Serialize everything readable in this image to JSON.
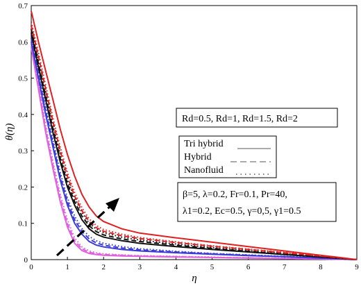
{
  "chart_data": {
    "type": "line",
    "xlabel": "η",
    "ylabel": "θ(η)",
    "xlim": [
      0,
      9
    ],
    "ylim": [
      0,
      0.7
    ],
    "xticks": [
      "0",
      "1",
      "2",
      "3",
      "4",
      "5",
      "6",
      "7",
      "8",
      "9"
    ],
    "yticks": [
      "0",
      "0.1",
      "0.2",
      "0.3",
      "0.4",
      "0.5",
      "0.6",
      "0.7"
    ],
    "grid": false,
    "colors": {
      "Rd=0.5": "#e060e0",
      "Rd=1": "#3a3ad8",
      "Rd=1.5": "#111111",
      "Rd=2": "#e02020"
    },
    "annotations": {
      "rd_box": "Rd=0.5, Rd=1, Rd=1.5, Rd=2",
      "legend_tri": "Tri hybrid",
      "legend_hybrid": "Hybrid",
      "legend_nano": "Nanofluid",
      "params_line1": "β=5,   λ=0.2,   Fr=0.1,   Pr=40,",
      "params_line2": "λ1=0.2, Ec=0.5, γ=0,5, γ1=0.5"
    },
    "series": [
      {
        "rd": "Rd=0.5",
        "style": "solid",
        "x": [
          0,
          0.2,
          0.4,
          0.6,
          0.8,
          1.0,
          1.2,
          1.4,
          1.6,
          1.8,
          2.0,
          2.5,
          3,
          4,
          5,
          6,
          7,
          8,
          8.6,
          9
        ],
        "y": [
          0.585,
          0.47,
          0.35,
          0.25,
          0.16,
          0.09,
          0.045,
          0.025,
          0.017,
          0.014,
          0.012,
          0.01,
          0.009,
          0.007,
          0.006,
          0.004,
          0.003,
          0.002,
          0.001,
          0
        ]
      },
      {
        "rd": "Rd=0.5",
        "style": "dashed",
        "x": [
          0,
          0.2,
          0.4,
          0.6,
          0.8,
          1.0,
          1.2,
          1.4,
          1.6,
          1.8,
          2.0,
          2.5,
          3,
          4,
          5,
          6,
          7,
          8,
          8.6,
          9
        ],
        "y": [
          0.595,
          0.48,
          0.36,
          0.26,
          0.17,
          0.1,
          0.052,
          0.03,
          0.02,
          0.016,
          0.014,
          0.012,
          0.01,
          0.008,
          0.006,
          0.005,
          0.003,
          0.002,
          0.001,
          0
        ]
      },
      {
        "rd": "Rd=0.5",
        "style": "dotted",
        "x": [
          0,
          0.2,
          0.4,
          0.6,
          0.8,
          1.0,
          1.2,
          1.4,
          1.6,
          1.8,
          2.0,
          2.5,
          3,
          4,
          5,
          6,
          7,
          8,
          8.6,
          9
        ],
        "y": [
          0.605,
          0.49,
          0.37,
          0.27,
          0.18,
          0.11,
          0.06,
          0.035,
          0.024,
          0.019,
          0.016,
          0.013,
          0.011,
          0.009,
          0.007,
          0.005,
          0.004,
          0.002,
          0.001,
          0
        ]
      },
      {
        "rd": "Rd=1",
        "style": "solid",
        "x": [
          0,
          0.2,
          0.4,
          0.6,
          0.8,
          1.0,
          1.2,
          1.4,
          1.6,
          1.8,
          2.0,
          2.5,
          3,
          4,
          5,
          6,
          7,
          8,
          8.6,
          9
        ],
        "y": [
          0.6,
          0.5,
          0.4,
          0.31,
          0.22,
          0.15,
          0.1,
          0.07,
          0.05,
          0.04,
          0.035,
          0.028,
          0.024,
          0.019,
          0.015,
          0.011,
          0.008,
          0.004,
          0.002,
          0
        ]
      },
      {
        "rd": "Rd=1",
        "style": "dashed",
        "x": [
          0,
          0.2,
          0.4,
          0.6,
          0.8,
          1.0,
          1.2,
          1.4,
          1.6,
          1.8,
          2.0,
          2.5,
          3,
          4,
          5,
          6,
          7,
          8,
          8.6,
          9
        ],
        "y": [
          0.61,
          0.51,
          0.41,
          0.32,
          0.23,
          0.16,
          0.11,
          0.078,
          0.057,
          0.046,
          0.04,
          0.032,
          0.027,
          0.021,
          0.016,
          0.012,
          0.008,
          0.004,
          0.002,
          0
        ]
      },
      {
        "rd": "Rd=1",
        "style": "dotted",
        "x": [
          0,
          0.2,
          0.4,
          0.6,
          0.8,
          1.0,
          1.2,
          1.4,
          1.6,
          1.8,
          2.0,
          2.5,
          3,
          4,
          5,
          6,
          7,
          8,
          8.6,
          9
        ],
        "y": [
          0.62,
          0.52,
          0.42,
          0.33,
          0.24,
          0.17,
          0.12,
          0.086,
          0.064,
          0.052,
          0.045,
          0.036,
          0.03,
          0.023,
          0.017,
          0.013,
          0.009,
          0.005,
          0.002,
          0
        ]
      },
      {
        "rd": "Rd=1.5",
        "style": "solid",
        "x": [
          0,
          0.2,
          0.4,
          0.6,
          0.8,
          1.0,
          1.2,
          1.4,
          1.6,
          1.8,
          2.0,
          2.5,
          3,
          4,
          5,
          6,
          7,
          8,
          8.6,
          9
        ],
        "y": [
          0.625,
          0.53,
          0.44,
          0.35,
          0.27,
          0.2,
          0.15,
          0.11,
          0.085,
          0.07,
          0.062,
          0.052,
          0.045,
          0.036,
          0.028,
          0.021,
          0.014,
          0.007,
          0.003,
          0
        ]
      },
      {
        "rd": "Rd=1.5",
        "style": "dashed",
        "x": [
          0,
          0.2,
          0.4,
          0.6,
          0.8,
          1.0,
          1.2,
          1.4,
          1.6,
          1.8,
          2.0,
          2.5,
          3,
          4,
          5,
          6,
          7,
          8,
          8.6,
          9
        ],
        "y": [
          0.635,
          0.54,
          0.45,
          0.36,
          0.28,
          0.21,
          0.16,
          0.12,
          0.093,
          0.077,
          0.068,
          0.057,
          0.05,
          0.04,
          0.031,
          0.023,
          0.015,
          0.008,
          0.003,
          0
        ]
      },
      {
        "rd": "Rd=1.5",
        "style": "dotted",
        "x": [
          0,
          0.2,
          0.4,
          0.6,
          0.8,
          1.0,
          1.2,
          1.4,
          1.6,
          1.8,
          2.0,
          2.5,
          3,
          4,
          5,
          6,
          7,
          8,
          8.6,
          9
        ],
        "y": [
          0.645,
          0.55,
          0.46,
          0.37,
          0.29,
          0.22,
          0.17,
          0.13,
          0.1,
          0.084,
          0.074,
          0.062,
          0.054,
          0.043,
          0.033,
          0.025,
          0.017,
          0.009,
          0.004,
          0
        ]
      },
      {
        "rd": "Rd=2",
        "style": "solid",
        "x": [
          0,
          0.2,
          0.4,
          0.6,
          0.8,
          1.0,
          1.2,
          1.4,
          1.6,
          1.8,
          2.0,
          2.5,
          3,
          4,
          5,
          6,
          7,
          8,
          8.6,
          9
        ],
        "y": [
          0.685,
          0.6,
          0.52,
          0.44,
          0.36,
          0.29,
          0.23,
          0.18,
          0.145,
          0.12,
          0.105,
          0.085,
          0.073,
          0.06,
          0.048,
          0.036,
          0.024,
          0.012,
          0.005,
          0
        ]
      },
      {
        "rd": "Rd=2",
        "style": "dashed",
        "x": [
          0,
          0.2,
          0.4,
          0.6,
          0.8,
          1.0,
          1.2,
          1.4,
          1.6,
          1.8,
          2.0,
          2.5,
          3,
          4,
          5,
          6,
          7,
          8,
          8.6,
          9
        ],
        "y": [
          0.645,
          0.56,
          0.47,
          0.38,
          0.3,
          0.23,
          0.175,
          0.135,
          0.105,
          0.088,
          0.078,
          0.066,
          0.058,
          0.047,
          0.037,
          0.028,
          0.019,
          0.01,
          0.004,
          0
        ]
      },
      {
        "rd": "Rd=2",
        "style": "dotted",
        "x": [
          0,
          0.2,
          0.4,
          0.6,
          0.8,
          1.0,
          1.2,
          1.4,
          1.6,
          1.8,
          2.0,
          2.5,
          3,
          4,
          5,
          6,
          7,
          8,
          8.6,
          9
        ],
        "y": [
          0.655,
          0.57,
          0.48,
          0.39,
          0.31,
          0.24,
          0.185,
          0.143,
          0.112,
          0.094,
          0.083,
          0.07,
          0.061,
          0.049,
          0.038,
          0.029,
          0.02,
          0.01,
          0.004,
          0
        ]
      }
    ]
  }
}
